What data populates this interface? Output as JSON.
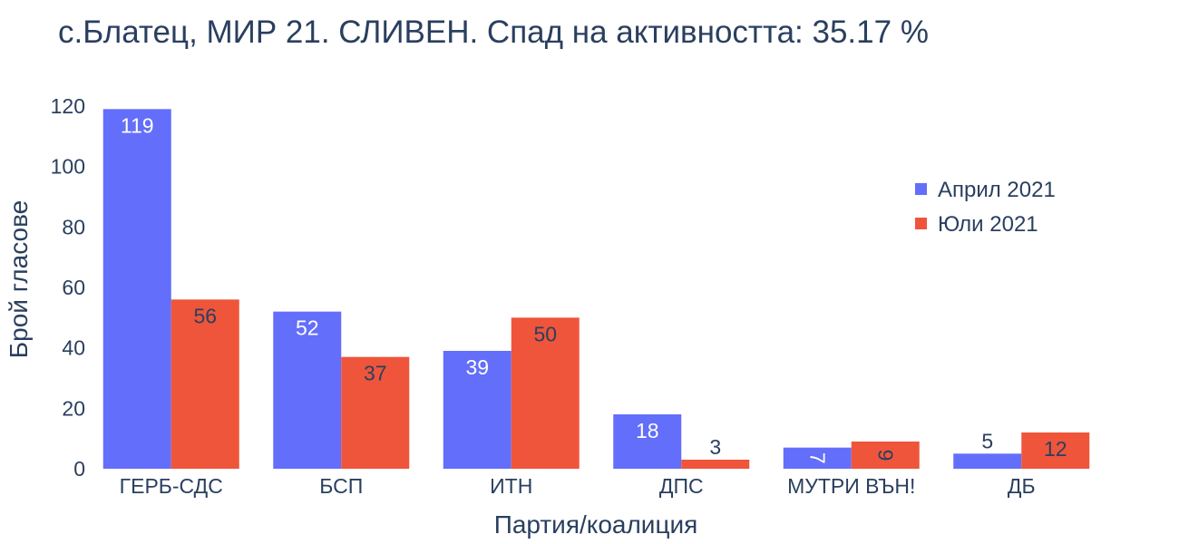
{
  "chart_data": {
    "type": "bar",
    "title": "с.Блатец, МИР 21. СЛИВЕН. Спад на активността: 35.17 %",
    "xlabel": "Партия/коалиция",
    "ylabel": "Брой гласове",
    "categories": [
      "ГЕРБ-СДС",
      "БСП",
      "ИТН",
      "ДПС",
      "МУТРИ ВЪН!",
      "ДБ"
    ],
    "series": [
      {
        "name": "Април 2021",
        "color": "#636efa",
        "values": [
          119,
          52,
          39,
          18,
          7,
          5
        ]
      },
      {
        "name": "Юли 2021",
        "color": "#ef553b",
        "values": [
          56,
          37,
          50,
          3,
          9,
          12
        ]
      }
    ],
    "ylim": [
      0,
      120
    ],
    "yticks": [
      0,
      20,
      40,
      60,
      80,
      100,
      120
    ],
    "legend_position": "top-right",
    "grid": false
  }
}
